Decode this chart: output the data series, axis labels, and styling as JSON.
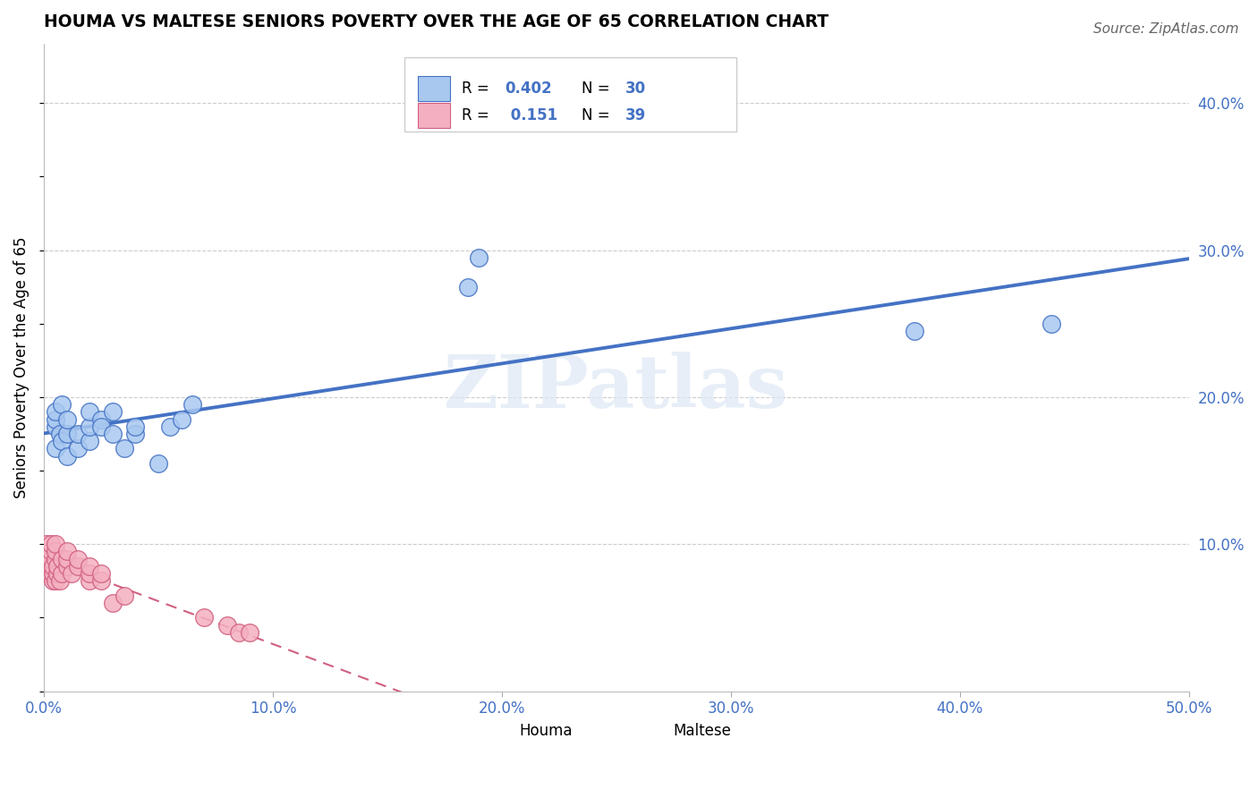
{
  "title": "HOUMA VS MALTESE SENIORS POVERTY OVER THE AGE OF 65 CORRELATION CHART",
  "source": "Source: ZipAtlas.com",
  "ylabel": "Seniors Poverty Over the Age of 65",
  "xlim": [
    0.0,
    0.5
  ],
  "ylim": [
    0.0,
    0.44
  ],
  "xticks": [
    0.0,
    0.1,
    0.2,
    0.3,
    0.4,
    0.5
  ],
  "xtick_labels": [
    "0.0%",
    "10.0%",
    "20.0%",
    "30.0%",
    "40.0%",
    "50.0%"
  ],
  "ytick_vals": [
    0.1,
    0.2,
    0.3,
    0.4
  ],
  "ytick_labels": [
    "10.0%",
    "20.0%",
    "30.0%",
    "40.0%"
  ],
  "houma_R": 0.402,
  "houma_N": 30,
  "maltese_R": 0.151,
  "maltese_N": 39,
  "houma_color": "#a8c8f0",
  "houma_edge_color": "#4472c4",
  "maltese_color": "#f4b0c0",
  "maltese_edge_color": "#d06080",
  "blue_text_color": "#4472c4",
  "red_text_color": "#e05060",
  "watermark": "ZIPatlas",
  "houma_x": [
    0.005,
    0.005,
    0.005,
    0.005,
    0.007,
    0.008,
    0.008,
    0.01,
    0.01,
    0.01,
    0.015,
    0.015,
    0.02,
    0.02,
    0.02,
    0.025,
    0.025,
    0.03,
    0.03,
    0.035,
    0.04,
    0.04,
    0.05,
    0.055,
    0.06,
    0.065,
    0.185,
    0.19,
    0.38,
    0.44
  ],
  "houma_y": [
    0.18,
    0.185,
    0.19,
    0.165,
    0.175,
    0.17,
    0.195,
    0.175,
    0.185,
    0.16,
    0.165,
    0.175,
    0.17,
    0.18,
    0.19,
    0.185,
    0.18,
    0.175,
    0.19,
    0.165,
    0.175,
    0.18,
    0.155,
    0.18,
    0.185,
    0.195,
    0.275,
    0.295,
    0.245,
    0.25
  ],
  "maltese_x": [
    0.001,
    0.001,
    0.001,
    0.002,
    0.002,
    0.002,
    0.003,
    0.003,
    0.003,
    0.003,
    0.004,
    0.004,
    0.004,
    0.005,
    0.005,
    0.005,
    0.005,
    0.006,
    0.006,
    0.007,
    0.008,
    0.008,
    0.01,
    0.01,
    0.01,
    0.012,
    0.015,
    0.015,
    0.02,
    0.02,
    0.02,
    0.025,
    0.025,
    0.03,
    0.035,
    0.07,
    0.08,
    0.085,
    0.09
  ],
  "maltese_y": [
    0.09,
    0.095,
    0.1,
    0.08,
    0.085,
    0.09,
    0.085,
    0.09,
    0.095,
    0.1,
    0.075,
    0.08,
    0.085,
    0.09,
    0.095,
    0.1,
    0.075,
    0.08,
    0.085,
    0.075,
    0.08,
    0.09,
    0.085,
    0.09,
    0.095,
    0.08,
    0.085,
    0.09,
    0.075,
    0.08,
    0.085,
    0.075,
    0.08,
    0.06,
    0.065,
    0.05,
    0.045,
    0.04,
    0.04
  ]
}
